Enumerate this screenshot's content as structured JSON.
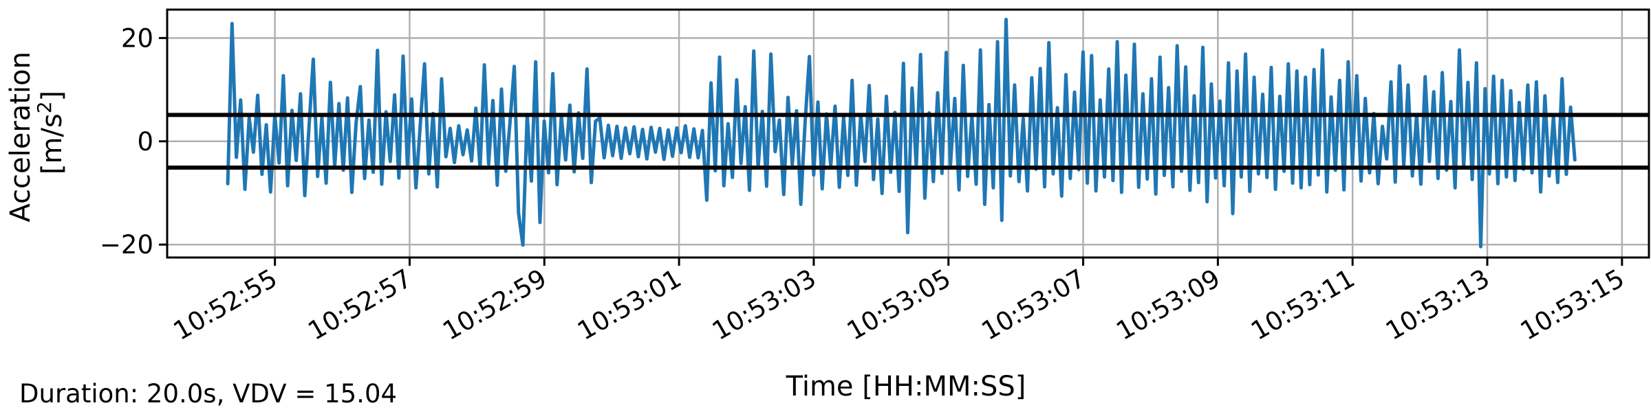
{
  "chart_data": {
    "type": "line",
    "title": "",
    "xlabel": "Time [HH:MM:SS]",
    "ylabel_line1": "Acceleration",
    "ylabel_line2_prefix": "[m/s",
    "ylabel_line2_sup": "2",
    "ylabel_line2_suffix": "]",
    "x_ticks": [
      "10:52:55",
      "10:52:57",
      "10:52:59",
      "10:53:01",
      "10:53:03",
      "10:53:05",
      "10:53:07",
      "10:53:09",
      "10:53:11",
      "10:53:13",
      "10:53:15"
    ],
    "x_range": [
      "10:52:53.4",
      "10:53:15.4"
    ],
    "y_ticks": [
      -20,
      0,
      20
    ],
    "y_tick_labels": [
      "−20",
      "0",
      "20"
    ],
    "ylim": [
      -22.5,
      25.5
    ],
    "grid": true,
    "series": [
      {
        "color": "#1f77b4",
        "x_start": "10:52:54.3",
        "x_end": "10:53:14.3",
        "sample_step_s": 0.05,
        "y": [
          -8.2,
          22.8,
          -3.1,
          8.0,
          -9.3,
          4.5,
          -2.1,
          8.9,
          -6.4,
          3.2,
          -9.8,
          5.1,
          -4.2,
          12.7,
          -8.6,
          6.0,
          -3.7,
          9.2,
          -10.5,
          2.8,
          15.9,
          -6.8,
          4.6,
          -8.1,
          11.4,
          -4.9,
          7.3,
          -5.6,
          8.4,
          -9.9,
          3.5,
          10.6,
          -7.2,
          4.1,
          -6.0,
          17.6,
          -8.3,
          5.7,
          -3.9,
          9.0,
          -7.1,
          16.5,
          -4.6,
          8.2,
          -9.0,
          3.1,
          15.0,
          -6.3,
          5.4,
          -8.8,
          12.1,
          -3.0,
          2.5,
          -4.1,
          3.0,
          -2.6,
          2.2,
          -3.8,
          6.4,
          -5.2,
          14.8,
          -4.4,
          7.9,
          -8.5,
          10.1,
          -5.8,
          3.7,
          14.5,
          -13.9,
          -20.1,
          5.2,
          -7.7,
          15.4,
          -15.7,
          3.9,
          -6.1,
          13.1,
          -8.4,
          4.8,
          -3.6,
          7.0,
          -5.9,
          5.5,
          -3.3,
          14.0,
          -8.0,
          3.9,
          4.5,
          -3.2,
          3.1,
          -2.8,
          2.9,
          -3.3,
          2.6,
          -2.4,
          2.8,
          -3.0,
          2.3,
          -3.4,
          2.7,
          -2.1,
          2.5,
          -3.5,
          2.2,
          -2.9,
          2.6,
          -2.2,
          3.0,
          -3.1,
          2.4,
          -3.2,
          2.1,
          -11.4,
          11.3,
          -5.7,
          16.3,
          -8.6,
          3.4,
          -7.0,
          11.9,
          -4.3,
          6.7,
          -9.5,
          17.5,
          -5.1,
          5.8,
          -8.7,
          16.9,
          -2.0,
          4.1,
          -10.3,
          8.5,
          -4.5,
          5.9,
          -12.2,
          3.6,
          16.4,
          -6.5,
          7.6,
          -9.2,
          5.3,
          -4.8,
          6.8,
          -8.9,
          4.7,
          -6.6,
          11.8,
          -8.5,
          5.1,
          -3.9,
          10.8,
          -7.4,
          4.3,
          -10.1,
          8.7,
          -6.0,
          5.6,
          -9.7,
          15.1,
          -17.7,
          10.3,
          -5.0,
          16.8,
          -11.0,
          5.5,
          -7.8,
          9.4,
          -6.2,
          17.2,
          -4.5,
          8.3,
          -9.4,
          14.7,
          -6.8,
          4.9,
          -8.3,
          17.7,
          -12.2,
          7.1,
          -9.0,
          19.3,
          -15.3,
          23.6,
          -6.7,
          10.9,
          -7.8,
          4.4,
          -9.6,
          12.3,
          -5.4,
          14.1,
          -8.8,
          19.1,
          -6.3,
          6.5,
          -10.6,
          12.9,
          -7.2,
          9.5,
          -5.5,
          17.3,
          -8.1,
          16.6,
          -9.6,
          8.0,
          -6.9,
          14.0,
          -7.6,
          19.3,
          -9.9,
          12.8,
          -5.0,
          18.8,
          -8.9,
          9.2,
          -7.3,
          12.1,
          -10.2,
          16.3,
          -6.6,
          10.4,
          -8.8,
          18.5,
          -5.8,
          14.4,
          -9.5,
          8.8,
          -8.0,
          18.2,
          -11.7,
          11.1,
          -7.1,
          7.8,
          -8.6,
          15.2,
          -14.0,
          13.6,
          -6.9,
          16.9,
          -9.7,
          12.4,
          -6.3,
          9.1,
          -7.0,
          14.3,
          -9.3,
          8.7,
          -5.8,
          15.0,
          -8.1,
          13.6,
          -9.0,
          12.4,
          -8.4,
          13.9,
          -6.5,
          17.7,
          -9.8,
          8.6,
          -5.6,
          11.8,
          -9.4,
          15.4,
          -4.6,
          12.7,
          -7.7,
          8.3,
          -6.1,
          5.4,
          -8.2,
          2.9,
          -3.4,
          11.5,
          -7.9,
          14.6,
          -4.8,
          10.9,
          -6.7,
          5.2,
          -8.3,
          12.5,
          -3.9,
          9.6,
          -7.2,
          13.3,
          -5.6,
          7.7,
          -9.0,
          17.7,
          -5.1,
          11.4,
          -7.4,
          15.2,
          -20.4,
          10.2,
          -6.3,
          12.6,
          -8.2,
          11.8,
          -6.9,
          9.8,
          -7.6,
          7.5,
          -5.4,
          10.9,
          -6.1,
          11.5,
          -9.8,
          8.8,
          -6.7,
          4.8,
          -8.0,
          12.1,
          -6.4,
          6.6,
          -3.6
        ]
      }
    ],
    "threshold_lines": [
      5.1,
      -5.1
    ],
    "threshold_color": "#000000"
  },
  "annotation": {
    "text": "Duration: 20.0s, VDV = 15.04"
  }
}
